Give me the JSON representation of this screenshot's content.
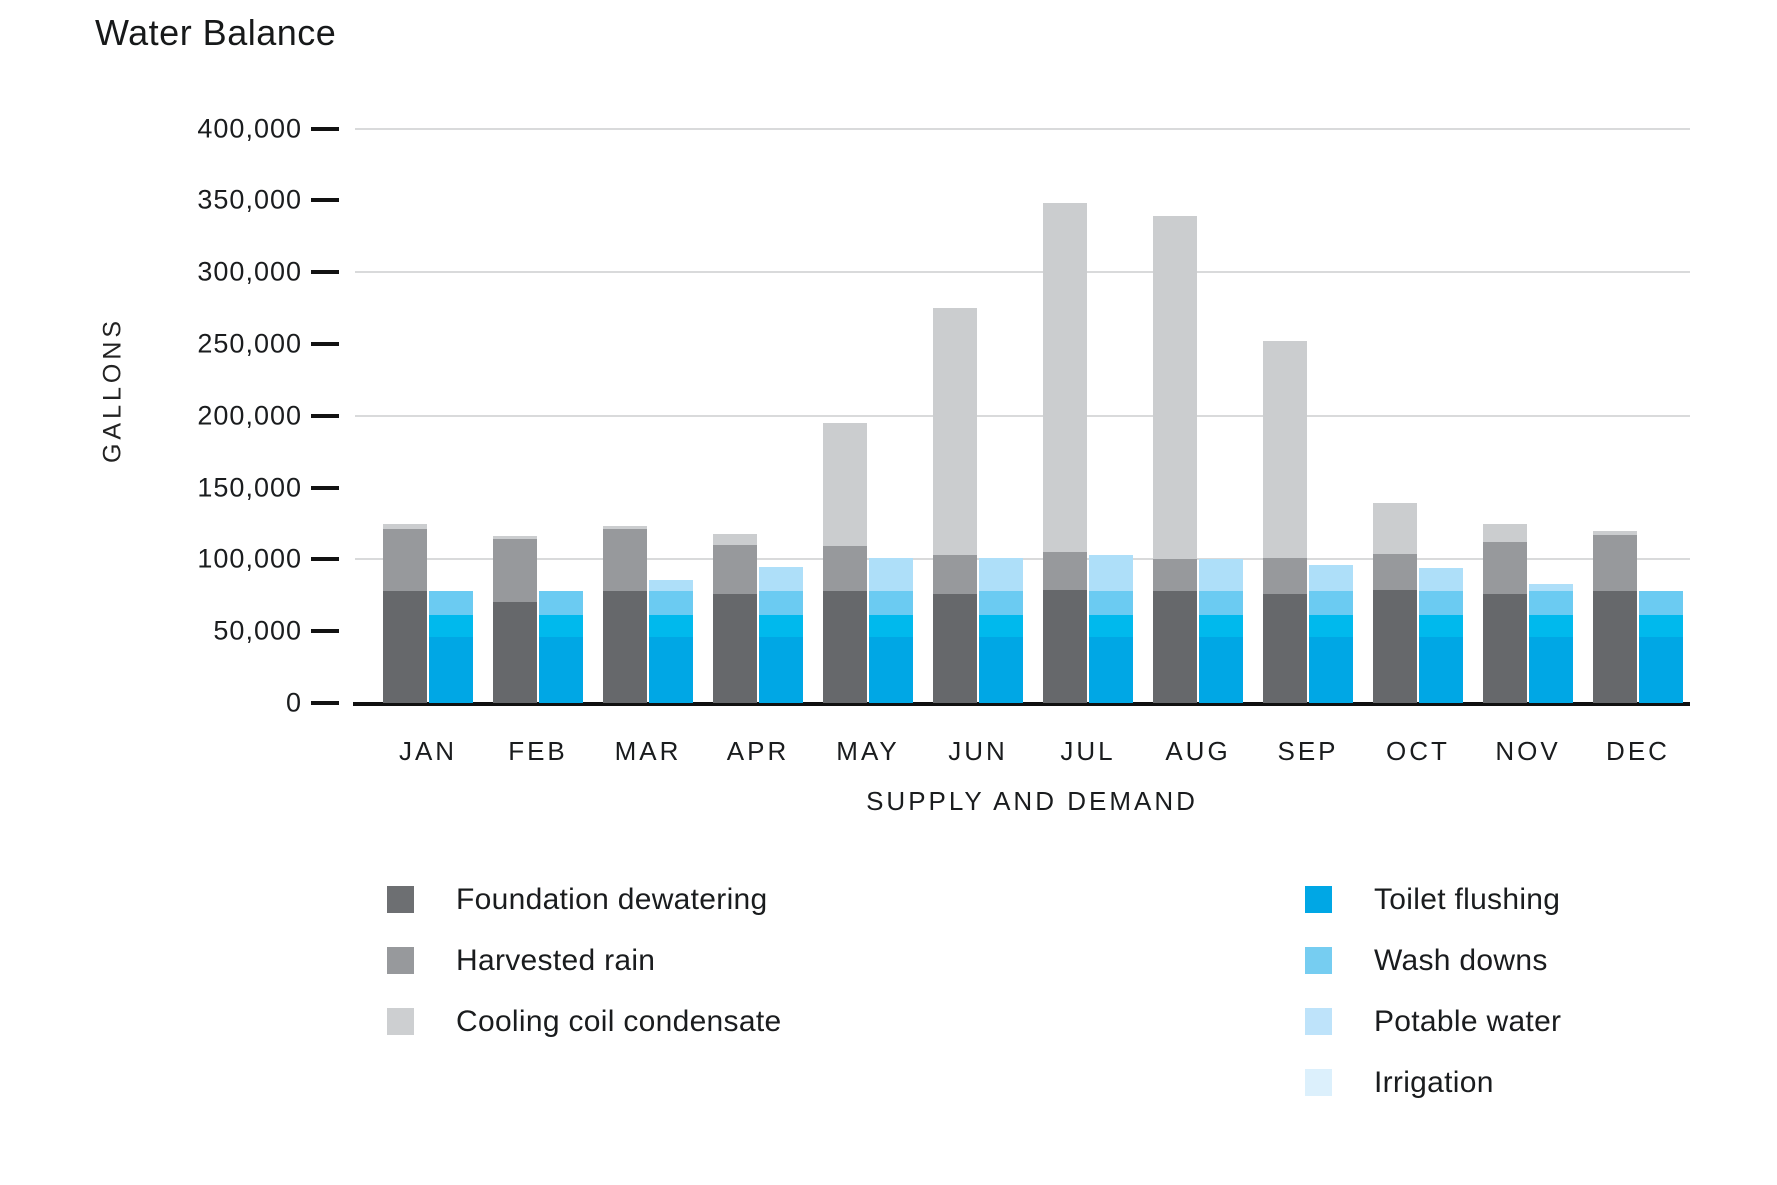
{
  "title": "Water Balance",
  "y_axis": {
    "label": "GALLONS",
    "tick_labels": [
      "400,000",
      "350,000",
      "300,000",
      "250,000",
      "200,000",
      "150,000",
      "100,000",
      "50,000",
      "0"
    ]
  },
  "x_axis": {
    "label": "SUPPLY AND DEMAND",
    "months": [
      "JAN",
      "FEB",
      "MAR",
      "APR",
      "MAY",
      "JUN",
      "JUL",
      "AUG",
      "SEP",
      "OCT",
      "NOV",
      "DEC"
    ]
  },
  "chart_data": {
    "type": "bar",
    "stacked": true,
    "layout": "two stacked bars per month: supply (grays) and demand (blues)",
    "title": "Water Balance",
    "xlabel": "SUPPLY AND DEMAND",
    "ylabel": "GALLONS",
    "unit": "gallons",
    "ylim": [
      0,
      400000
    ],
    "ytick_step": 50000,
    "gridline_step": 100000,
    "grid": "horizontal lines every 100,000; tick dashes every 50,000",
    "categories": [
      "JAN",
      "FEB",
      "MAR",
      "APR",
      "MAY",
      "JUN",
      "JUL",
      "AUG",
      "SEP",
      "OCT",
      "NOV",
      "DEC"
    ],
    "supply_series": [
      {
        "name": "Foundation dewatering",
        "color": "#66686b",
        "values": [
          78000,
          70000,
          78000,
          76000,
          78000,
          76000,
          79000,
          78000,
          76000,
          79000,
          76000,
          78000
        ]
      },
      {
        "name": "Harvested rain",
        "color": "#97999c",
        "values": [
          43000,
          44000,
          43000,
          34000,
          31000,
          27000,
          26000,
          22000,
          25000,
          25000,
          36000,
          39000
        ]
      },
      {
        "name": "Cooling coil condensate",
        "color": "#cbcdcf",
        "values": [
          4000,
          2000,
          2000,
          8000,
          86000,
          172000,
          243000,
          239000,
          151000,
          35000,
          13000,
          3000
        ]
      }
    ],
    "demand_series": [
      {
        "name": "Toilet flushing",
        "color": "#00a7e5",
        "values": [
          46000,
          46000,
          46000,
          46000,
          46000,
          46000,
          46000,
          46000,
          46000,
          46000,
          46000,
          46000
        ]
      },
      {
        "name": "Wash downs",
        "color": "#00b9ed",
        "values": [
          15000,
          15000,
          15000,
          15000,
          15000,
          15000,
          15000,
          15000,
          15000,
          15000,
          15000,
          15000
        ]
      },
      {
        "name": "Potable water",
        "color": "#6bcbf2",
        "values": [
          17000,
          17000,
          17000,
          17000,
          17000,
          17000,
          17000,
          17000,
          17000,
          17000,
          17000,
          17000
        ]
      },
      {
        "name": "Irrigation",
        "color": "#aedff9",
        "values": [
          0,
          0,
          8000,
          17000,
          23000,
          23000,
          25000,
          22000,
          18000,
          16000,
          5000,
          0
        ]
      }
    ]
  },
  "legend": {
    "supply": [
      {
        "label": "Foundation dewatering",
        "swatch": "#6d6f72"
      },
      {
        "label": "Harvested rain",
        "swatch": "#97999c"
      },
      {
        "label": "Cooling coil condensate",
        "swatch": "#cdcfd1"
      }
    ],
    "demand": [
      {
        "label": "Toilet flushing",
        "swatch": "#00a7e5"
      },
      {
        "label": "Wash downs",
        "swatch": "#76cdf1"
      },
      {
        "label": "Potable water",
        "swatch": "#bee3fa"
      },
      {
        "label": "Irrigation",
        "swatch": "#dcf0fc"
      }
    ]
  }
}
